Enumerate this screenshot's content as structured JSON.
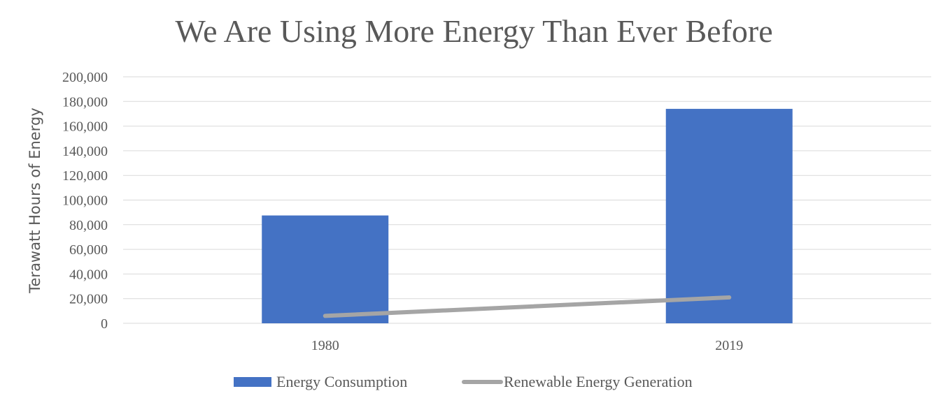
{
  "chart_data": {
    "type": "bar",
    "title": "We Are Using More Energy Than Ever Before",
    "xlabel": "",
    "ylabel": "Terawatt Hours of Energy",
    "categories": [
      "1980",
      "2019"
    ],
    "ylim": [
      0,
      200000
    ],
    "yticks": [
      0,
      20000,
      40000,
      60000,
      80000,
      100000,
      120000,
      140000,
      160000,
      180000,
      200000
    ],
    "ytick_labels": [
      "0",
      "20,000",
      "40,000",
      "60,000",
      "80,000",
      "100,000",
      "120,000",
      "140,000",
      "160,000",
      "180,000",
      "200,000"
    ],
    "grid": true,
    "legend_position": "bottom",
    "series": [
      {
        "name": "Energy Consumption",
        "type": "bar",
        "color": "#4472C4",
        "values": [
          87500,
          174000
        ]
      },
      {
        "name": "Renewable Energy Generation",
        "type": "line",
        "color": "#A5A5A5",
        "values": [
          6000,
          21000
        ]
      }
    ]
  }
}
